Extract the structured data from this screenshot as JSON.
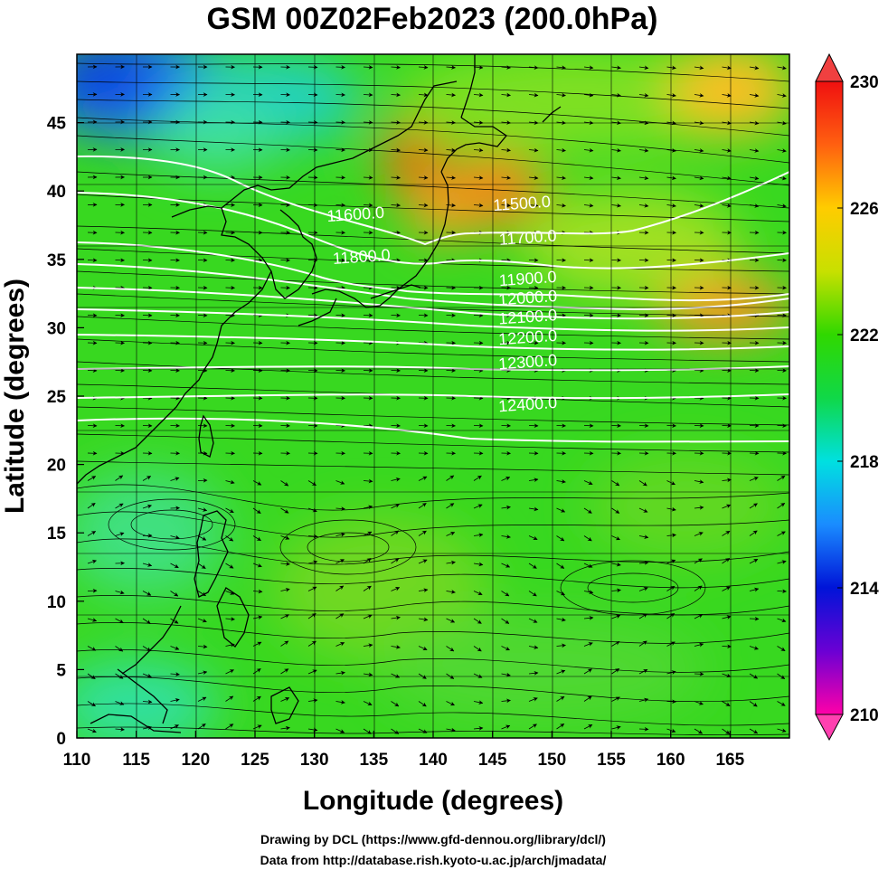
{
  "title": "GSM 00Z02Feb2023 (200.0hPa)",
  "xlabel": "Longitude (degrees)",
  "ylabel": "Latitude  (degrees)",
  "credits": {
    "line1": "Drawing by DCL (https://www.gfd-dennou.org/library/dcl/)",
    "line2": "Data from http://database.rish.kyoto-u.ac.jp/arch/jmadata/"
  },
  "map_data": {
    "lon_range": [
      110,
      170
    ],
    "lat_range": [
      0,
      50
    ],
    "x_ticks": [
      "110",
      "115",
      "120",
      "125",
      "130",
      "135",
      "140",
      "145",
      "150",
      "155",
      "160",
      "165"
    ],
    "y_ticks": [
      "0",
      "5",
      "10",
      "15",
      "20",
      "25",
      "30",
      "35",
      "40",
      "45"
    ],
    "colorbar": {
      "min": 210,
      "max": 230,
      "ticks": [
        "210",
        "214",
        "218",
        "222",
        "226",
        "230"
      ],
      "colors": [
        "#ff00a8",
        "#6b00d4",
        "#0014d8",
        "#1a8cff",
        "#00e0e0",
        "#10d848",
        "#30d800",
        "#c8e000",
        "#ffcc00",
        "#ff6010",
        "#f01010"
      ]
    },
    "contours": [
      {
        "label": "11500.0",
        "lon": 147.5,
        "lat": 38.7
      },
      {
        "label": "11600.0",
        "lon": 133.5,
        "lat": 37.9
      },
      {
        "label": "11700.0",
        "lon": 148.0,
        "lat": 36.2
      },
      {
        "label": "11800.0",
        "lon": 134.0,
        "lat": 34.8
      },
      {
        "label": "11900.0",
        "lon": 148.0,
        "lat": 33.2
      },
      {
        "label": "12000.0",
        "lon": 148.0,
        "lat": 31.8
      },
      {
        "label": "12100.0",
        "lon": 148.0,
        "lat": 30.4
      },
      {
        "label": "12200.0",
        "lon": 148.0,
        "lat": 28.9
      },
      {
        "label": "12300.0",
        "lon": 148.0,
        "lat": 27.1
      },
      {
        "label": "12400.0",
        "lon": 148.0,
        "lat": 24.0
      }
    ]
  }
}
